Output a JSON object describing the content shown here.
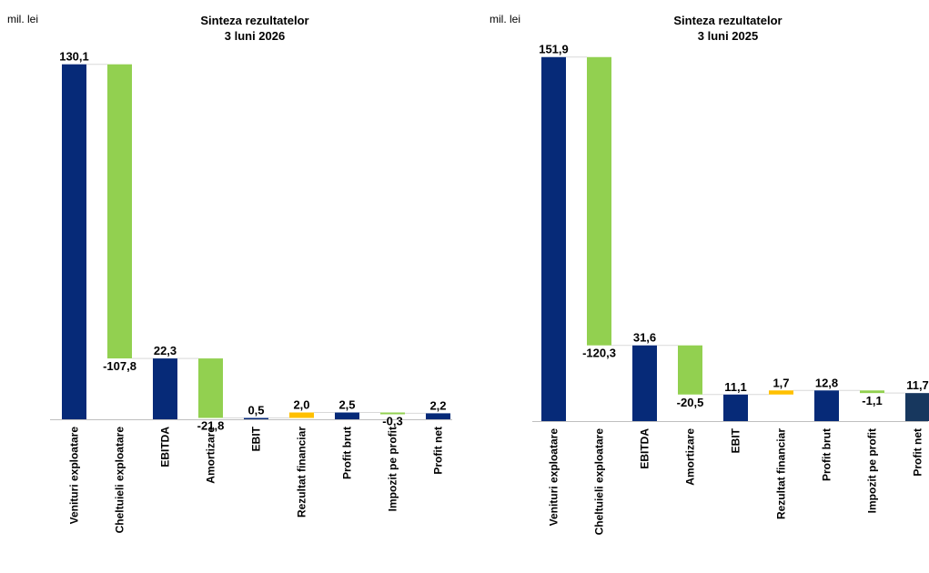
{
  "chart_data": [
    {
      "type": "waterfall",
      "unit_label": "mil. lei",
      "title_line1": "Sinteza rezultatelor",
      "title_line2": "3 luni 2026",
      "categories": [
        "Venituri exploatare",
        "Cheltuieli exploatare",
        "EBITDA",
        "Amortizare",
        "EBIT",
        "Rezultat financiar",
        "Profit brut",
        "Impozit pe profit",
        "Profit net"
      ],
      "values": [
        130.1,
        -107.8,
        22.3,
        -21.8,
        0.5,
        2.0,
        2.5,
        -0.3,
        2.2
      ],
      "value_labels": [
        "130,1",
        "-107,8",
        "22,3",
        "-21,8",
        "0,5",
        "2,0",
        "2,5",
        "-0,3",
        "2,2"
      ],
      "kinds": [
        "total",
        "delta",
        "total",
        "delta",
        "total",
        "delta",
        "total",
        "delta",
        "total"
      ]
    },
    {
      "type": "waterfall",
      "unit_label": "mil. lei",
      "title_line1": "Sinteza rezultatelor",
      "title_line2": "3 luni 2025",
      "categories": [
        "Venituri exploatare",
        "Cheltuieli exploatare",
        "EBITDA",
        "Amortizare",
        "EBIT",
        "Rezultat financiar",
        "Profit brut",
        "Impozit pe profit",
        "Profit net"
      ],
      "values": [
        151.9,
        -120.3,
        31.6,
        -20.5,
        11.1,
        1.7,
        12.8,
        -1.1,
        11.7
      ],
      "value_labels": [
        "151,9",
        "-120,3",
        "31,6",
        "-20,5",
        "11,1",
        "1,7",
        "12,8",
        "-1,1",
        "11,7"
      ],
      "kinds": [
        "total",
        "delta",
        "total",
        "delta",
        "total",
        "delta",
        "total",
        "delta",
        "total"
      ]
    }
  ],
  "colors": {
    "total": "#062A78",
    "negative": "#92D050",
    "positive": "#FFC000",
    "net_2025": "#17375E",
    "axis": "#bfbfbf",
    "connector": "#d9d9d9"
  }
}
